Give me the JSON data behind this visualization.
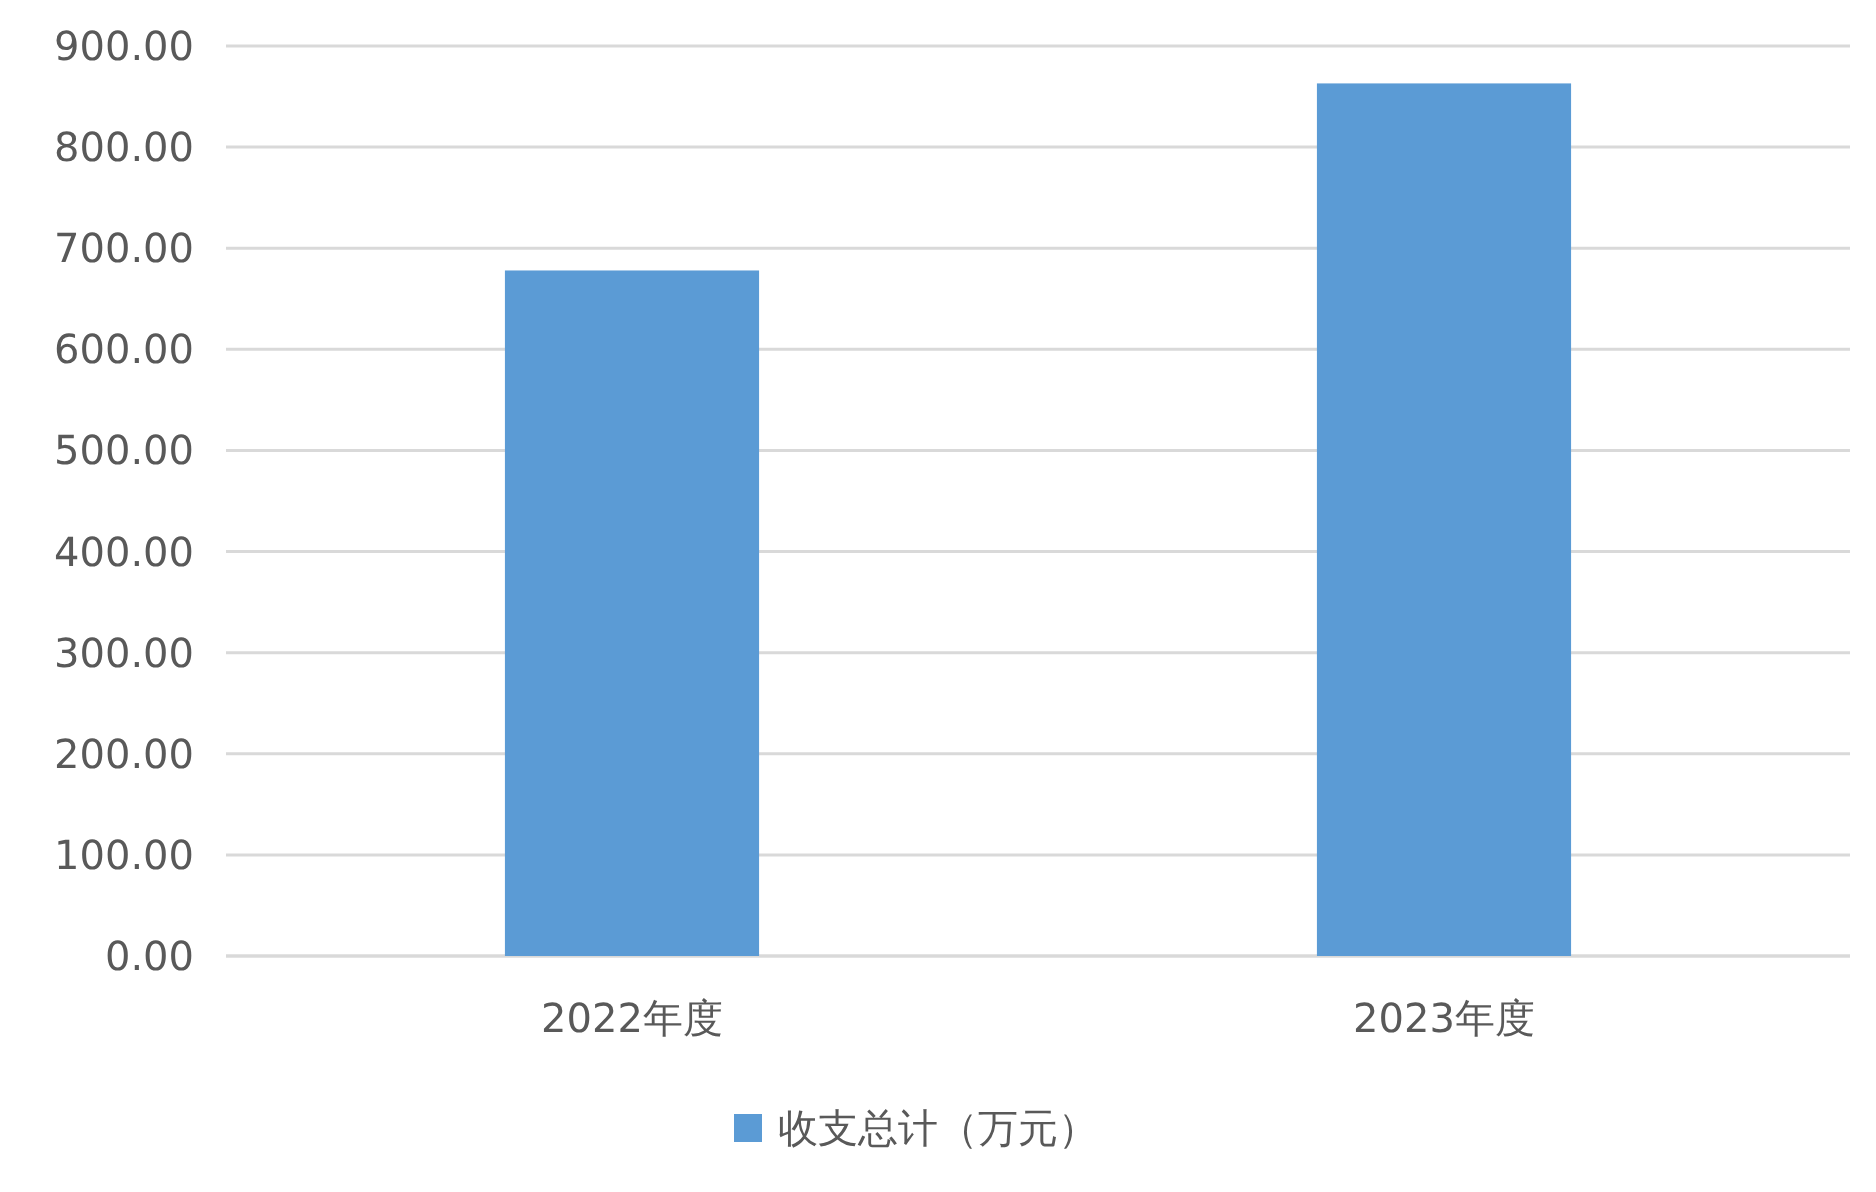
{
  "chart_data": {
    "type": "bar",
    "categories": [
      "2022年度",
      "2023年度"
    ],
    "series": [
      {
        "name": "收支总计（万元）",
        "color": "#5b9bd5",
        "values": [
          678,
          863
        ]
      }
    ],
    "ylim": [
      0,
      900
    ],
    "yticks": [
      {
        "value": 0,
        "label": "0.00"
      },
      {
        "value": 100,
        "label": "100.00"
      },
      {
        "value": 200,
        "label": "200.00"
      },
      {
        "value": 300,
        "label": "300.00"
      },
      {
        "value": 400,
        "label": "400.00"
      },
      {
        "value": 500,
        "label": "500.00"
      },
      {
        "value": 600,
        "label": "600.00"
      },
      {
        "value": 700,
        "label": "700.00"
      },
      {
        "value": 800,
        "label": "800.00"
      },
      {
        "value": 900,
        "label": "900.00"
      }
    ],
    "grid": "y",
    "legend": "bottom"
  }
}
